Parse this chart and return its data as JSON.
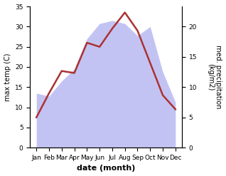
{
  "months": [
    "Jan",
    "Feb",
    "Mar",
    "Apr",
    "May",
    "Jun",
    "Jul",
    "Aug",
    "Sep",
    "Oct",
    "Nov",
    "Dec"
  ],
  "x_positions": [
    0,
    1,
    2,
    3,
    4,
    5,
    6,
    7,
    8,
    9,
    10,
    11
  ],
  "temperature": [
    7.5,
    13.5,
    19.0,
    18.5,
    26.0,
    25.0,
    29.5,
    33.5,
    29.0,
    21.0,
    13.0,
    9.5
  ],
  "precipitation": [
    9.0,
    8.5,
    11.0,
    13.0,
    18.0,
    20.5,
    21.0,
    20.5,
    18.5,
    20.0,
    12.5,
    7.5
  ],
  "temp_color": "#aa3333",
  "precip_fill_color": "#aaaaee",
  "precip_fill_alpha": 0.7,
  "left_ylabel": "max temp (C)",
  "right_ylabel": "med. precipitation\n(kg/m2)",
  "xlabel": "date (month)",
  "ylim_left": [
    0,
    35
  ],
  "ylim_right": [
    0,
    23.33
  ],
  "left_yticks": [
    0,
    5,
    10,
    15,
    20,
    25,
    30,
    35
  ],
  "right_yticks": [
    0,
    5,
    10,
    15,
    20
  ],
  "temp_linewidth": 1.8,
  "xlabel_fontsize": 8,
  "ylabel_fontsize": 7,
  "tick_fontsize": 6.5
}
